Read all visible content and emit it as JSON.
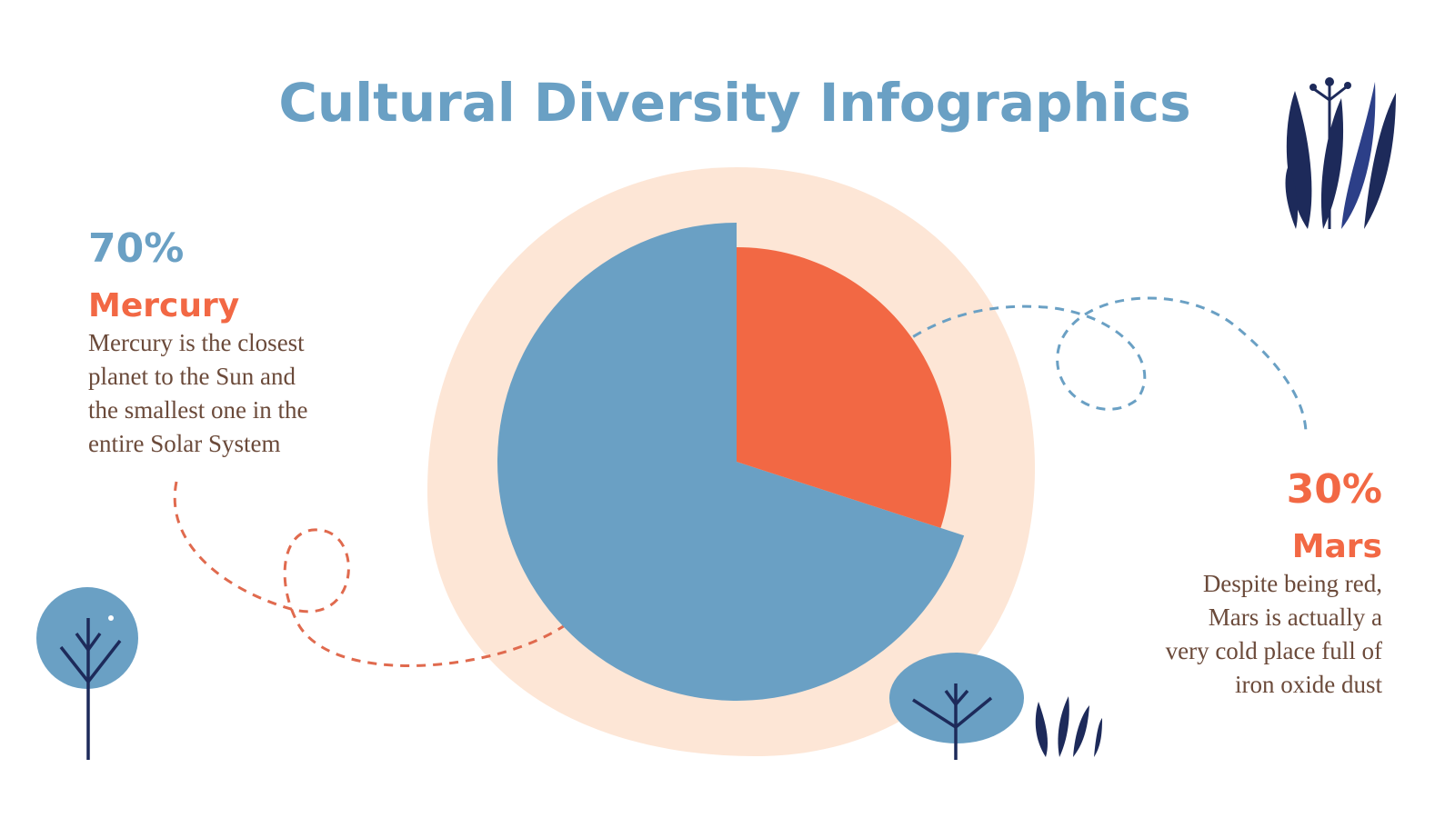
{
  "chart_data": {
    "type": "pie",
    "title": "Cultural Diversity Infographics",
    "categories": [
      "Mercury",
      "Mars"
    ],
    "values": [
      70,
      30
    ],
    "value_labels": [
      "70%",
      "30%"
    ],
    "colors": [
      "#6aa0c4",
      "#f26844"
    ],
    "descriptions": [
      [
        "Mercury is the closest",
        "planet to the Sun and",
        "the smallest one in the",
        "entire Solar System"
      ],
      [
        "Despite being red,",
        "Mars is actually a",
        "very cold place full of",
        "iron oxide dust"
      ]
    ]
  }
}
